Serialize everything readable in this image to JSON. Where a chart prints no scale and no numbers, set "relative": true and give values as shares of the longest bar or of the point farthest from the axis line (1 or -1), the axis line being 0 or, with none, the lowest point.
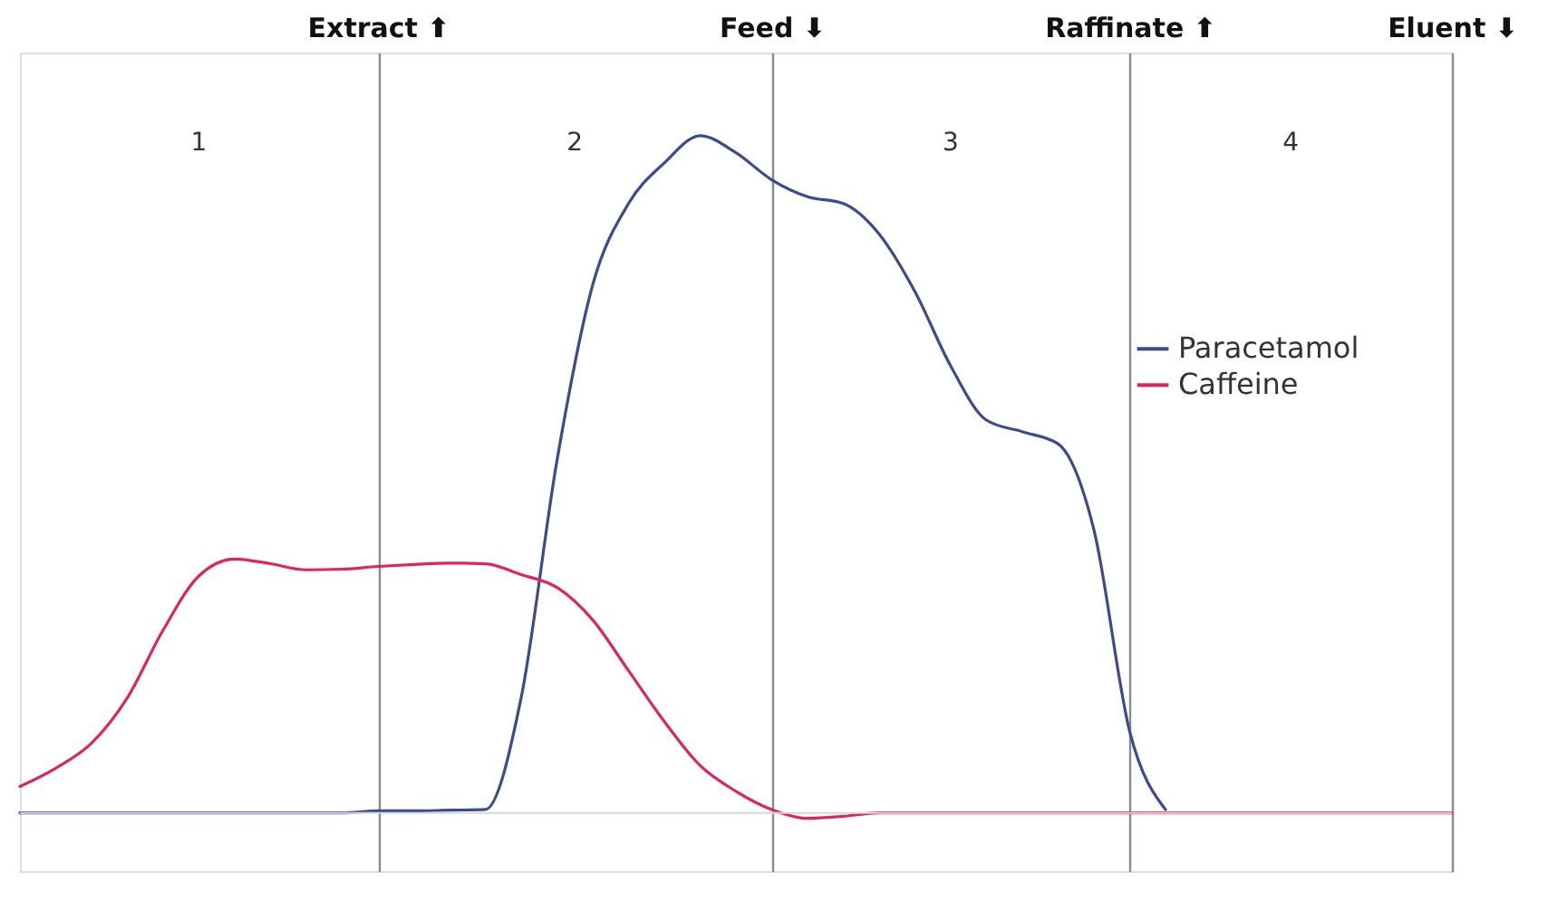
{
  "chart_data": {
    "type": "line",
    "relative": true,
    "tick_labels": "x",
    "grid": "x",
    "legend": "right",
    "marker": "none",
    "line_style": "solid",
    "categories": [
      null,
      null,
      null,
      null,
      null,
      null,
      null,
      null,
      null,
      null,
      "Extract ⬆",
      null,
      null,
      null,
      null,
      null,
      null,
      null,
      null,
      null,
      null,
      "Feed ⬇",
      null,
      null,
      null,
      null,
      null,
      null,
      null,
      null,
      null,
      "Raffinate ⬆",
      null,
      null,
      null,
      null,
      null,
      null,
      null,
      null,
      "Eluent ⬇"
    ],
    "series": [
      {
        "name": "Paracetamol",
        "color": "#3c4a8e",
        "values": [
          0,
          0,
          0,
          0,
          0,
          0,
          0,
          0,
          0,
          0,
          0.003,
          0.003,
          0.004,
          0.005,
          0.17,
          0.52,
          0.78,
          0.9,
          0.96,
          1,
          0.975,
          0.935,
          0.91,
          0.9,
          0.855,
          0.77,
          0.66,
          0.58,
          0.563,
          0.545,
          0.418,
          0.12,
          0.005,
          null,
          null,
          null,
          null,
          null,
          null,
          null,
          null
        ]
      },
      {
        "name": "Caffeine",
        "color": "#e0245e",
        "values": [
          0.039,
          0.066,
          0.103,
          0.17,
          0.27,
          0.35,
          0.375,
          0.368,
          0.359,
          0.36,
          0.364,
          0.367,
          0.369,
          0.368,
          0.352,
          0.333,
          0.285,
          0.21,
          0.135,
          0.07,
          0.032,
          0.005,
          -0.008,
          -0.005,
          0,
          0,
          0,
          0,
          0,
          0,
          0,
          0,
          0,
          0,
          0,
          0,
          0,
          0,
          0,
          0,
          0
        ]
      }
    ],
    "annotations": [
      "1",
      "2",
      "3",
      "4"
    ]
  }
}
